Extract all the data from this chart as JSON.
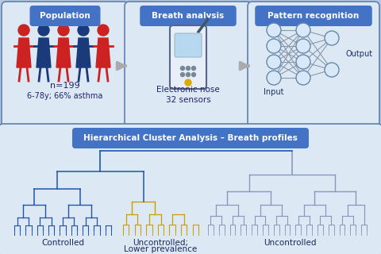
{
  "bg_color": "#b8c8e0",
  "box_bg": "#dde8f5",
  "box_border": "#6080b0",
  "title_bg": "#4472c4",
  "title_text_color": "white",
  "population_title": "Population",
  "breath_title": "Breath analysis",
  "pattern_title": "Pattern recognition",
  "cluster_title": "Hierarchical Cluster Analysis – Breath profiles",
  "population_line1": "n=199",
  "population_line2": "6-78y; 66% asthma",
  "breath_line1": "Electronic nose",
  "breath_line2": "32 sensors",
  "output_label": "Output",
  "input_label": "Input",
  "controlled_label": "Controlled",
  "uncontrolled1_label": "Uncontrolled;\nLower prevalence\nof asthma",
  "uncontrolled2_label": "Uncontrolled",
  "person_red": "#cc2222",
  "person_blue": "#1a3a7a",
  "dend_blue": "#2255aa",
  "dend_gold": "#c8a000",
  "dend_gray": "#8899bb",
  "node_fill": "#d8e8f8",
  "node_edge": "#6688aa"
}
